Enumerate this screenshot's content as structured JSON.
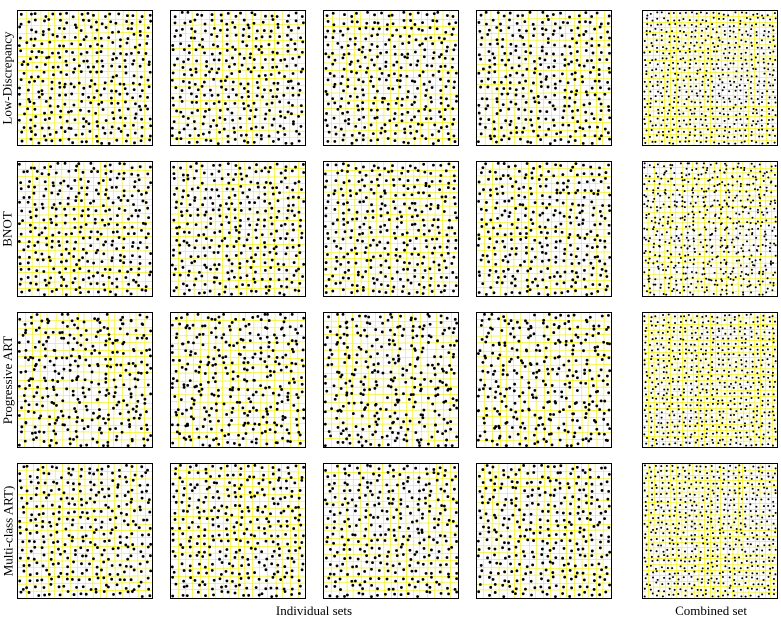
{
  "rows": [
    {
      "label": "Low-Discrepancy",
      "kind": "uniform"
    },
    {
      "label": "BNOT",
      "kind": "uniform"
    },
    {
      "label": "Progressive ART",
      "kind": "clustered"
    },
    {
      "label": "Multi-class ART)",
      "kind": "uniform"
    }
  ],
  "captions": {
    "individual": "Individual sets",
    "combined": "Combined set"
  },
  "colors": {
    "grid": "#f2f000",
    "point": "#000000",
    "border": "#000000"
  },
  "panel_grid": {
    "individual_cells": 18,
    "combined_cells": 24
  }
}
